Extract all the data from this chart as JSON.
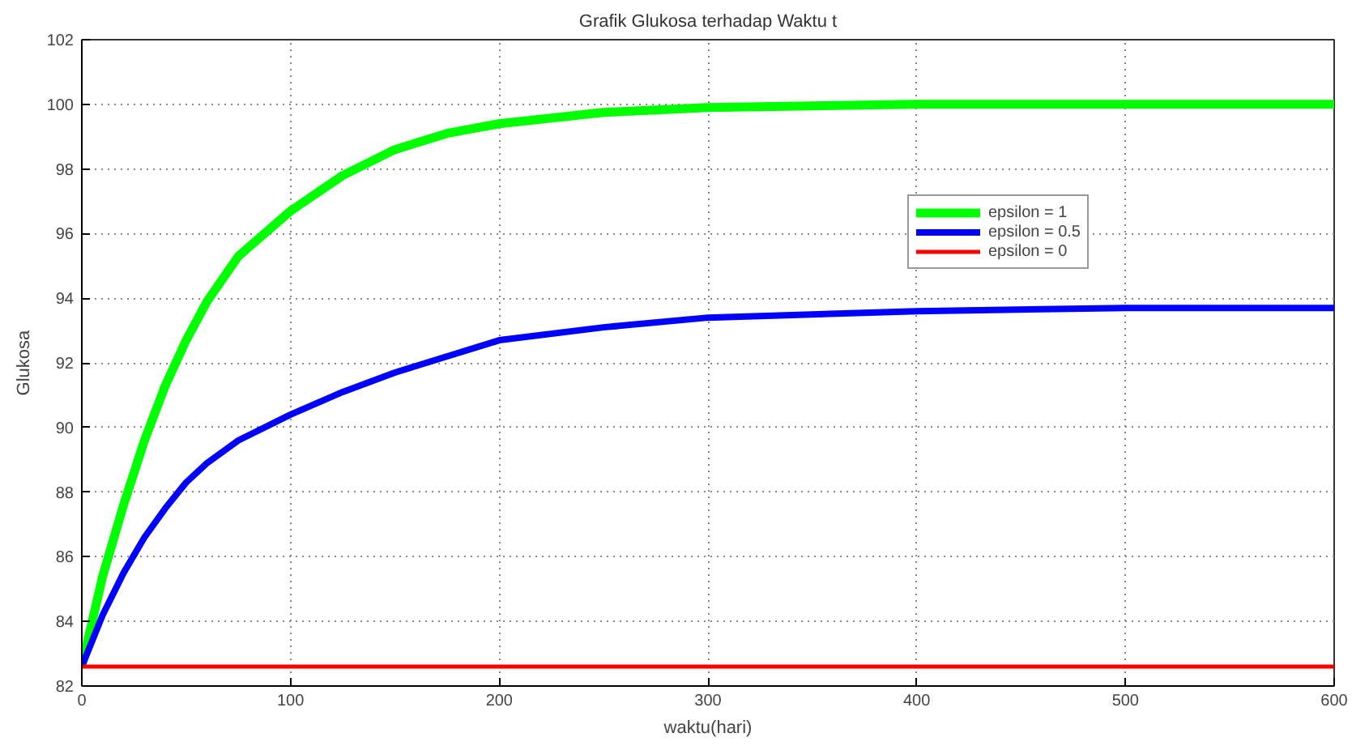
{
  "chart_data": {
    "type": "line",
    "title": "Grafik Glukosa terhadap Waktu t",
    "xlabel": "waktu(hari)",
    "ylabel": "Glukosa",
    "x": [
      0,
      10,
      20,
      30,
      40,
      50,
      60,
      75,
      100,
      125,
      150,
      175,
      200,
      250,
      300,
      400,
      500,
      600
    ],
    "series": [
      {
        "name": "epsilon = 1",
        "color": "#00ff00",
        "values": [
          82.6,
          85.4,
          87.6,
          89.6,
          91.3,
          92.7,
          93.9,
          95.3,
          96.7,
          97.8,
          98.6,
          99.1,
          99.4,
          99.75,
          99.9,
          100,
          100,
          100
        ]
      },
      {
        "name": "epsilon = 0.5",
        "color": "#0000ff",
        "values": [
          82.6,
          84.2,
          85.5,
          86.6,
          87.5,
          88.3,
          88.9,
          89.6,
          90.4,
          91.1,
          91.7,
          92.2,
          92.7,
          93.1,
          93.4,
          93.6,
          93.7,
          93.7
        ]
      },
      {
        "name": "epsilon = 0",
        "color": "#ff0000",
        "values": [
          82.6,
          82.6,
          82.6,
          82.6,
          82.6,
          82.6,
          82.6,
          82.6,
          82.6,
          82.6,
          82.6,
          82.6,
          82.6,
          82.6,
          82.6,
          82.6,
          82.6,
          82.6
        ]
      }
    ],
    "xlim": [
      0,
      600
    ],
    "xticks": [
      0,
      100,
      200,
      300,
      400,
      500,
      600
    ],
    "ylim": [
      82,
      102
    ],
    "yticks": [
      82,
      84,
      86,
      88,
      90,
      92,
      94,
      96,
      98,
      100,
      102
    ],
    "grid": true,
    "legend": "top right",
    "line_style": "solid"
  }
}
